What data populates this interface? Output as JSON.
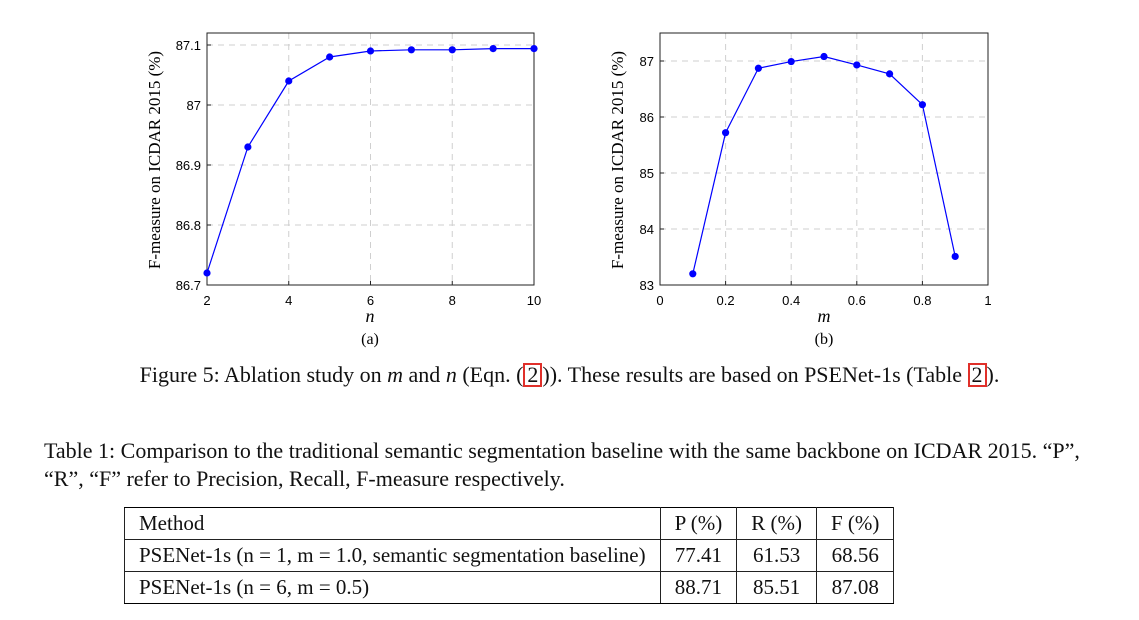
{
  "chart_data": [
    {
      "type": "line",
      "subtitle": "(a)",
      "xlabel": "n",
      "ylabel": "F-measure on ICDAR 2015 (%)",
      "xlim": [
        2,
        10
      ],
      "ylim": [
        86.7,
        87.12
      ],
      "xticks": [
        2,
        4,
        6,
        8,
        10
      ],
      "yticks": [
        86.7,
        86.8,
        86.9,
        87,
        87.1
      ],
      "xtick_labels": [
        "2",
        "4",
        "6",
        "8",
        "10"
      ],
      "ytick_labels": [
        "86.7",
        "86.8",
        "86.9",
        "87",
        "87.1"
      ],
      "grid": true,
      "color": "#0000ff",
      "series": [
        {
          "x": [
            2,
            3,
            4,
            5,
            6,
            7,
            8,
            9,
            10
          ],
          "values": [
            86.72,
            86.93,
            87.04,
            87.08,
            87.09,
            87.092,
            87.092,
            87.094,
            87.094
          ]
        }
      ]
    },
    {
      "type": "line",
      "subtitle": "(b)",
      "xlabel": "m",
      "ylabel": "F-measure on ICDAR 2015 (%)",
      "xlim": [
        0,
        1
      ],
      "ylim": [
        83,
        87.5
      ],
      "xticks": [
        0,
        0.2,
        0.4,
        0.6,
        0.8,
        1
      ],
      "yticks": [
        83,
        84,
        85,
        86,
        87
      ],
      "xtick_labels": [
        "0",
        "0.2",
        "0.4",
        "0.6",
        "0.8",
        "1"
      ],
      "ytick_labels": [
        "83",
        "84",
        "85",
        "86",
        "87"
      ],
      "grid": true,
      "color": "#0000ff",
      "series": [
        {
          "x": [
            0.1,
            0.2,
            0.3,
            0.4,
            0.5,
            0.6,
            0.7,
            0.8,
            0.9
          ],
          "values": [
            83.2,
            85.72,
            86.87,
            86.99,
            87.08,
            86.93,
            86.77,
            86.22,
            83.51
          ]
        }
      ]
    }
  ],
  "figure_caption": {
    "prefix": "Figure 5: Ablation study on ",
    "var_m": "m",
    "and_text": " and ",
    "var_n": "n",
    "eqn_open": " (Eqn. (",
    "eqn_ref": "2",
    "eqn_close": ")). These results are based on PSENet-1s (Table ",
    "table_ref": "2",
    "suffix": ")."
  },
  "table_caption": "Table 1: Comparison to the traditional semantic segmentation baseline with the same backbone on ICDAR 2015. “P”, “R”, “F” refer to Precision, Recall, F-measure respectively.",
  "table": {
    "headers": [
      "Method",
      "P (%)",
      "R (%)",
      "F (%)"
    ],
    "rows": [
      {
        "method": "PSENet-1s (n = 1, m = 1.0, semantic segmentation baseline)",
        "p": "77.41",
        "r": "61.53",
        "f": "68.56"
      },
      {
        "method": "PSENet-1s (n = 6, m = 0.5)",
        "p": "88.71",
        "r": "85.51",
        "f": "87.08"
      }
    ]
  }
}
